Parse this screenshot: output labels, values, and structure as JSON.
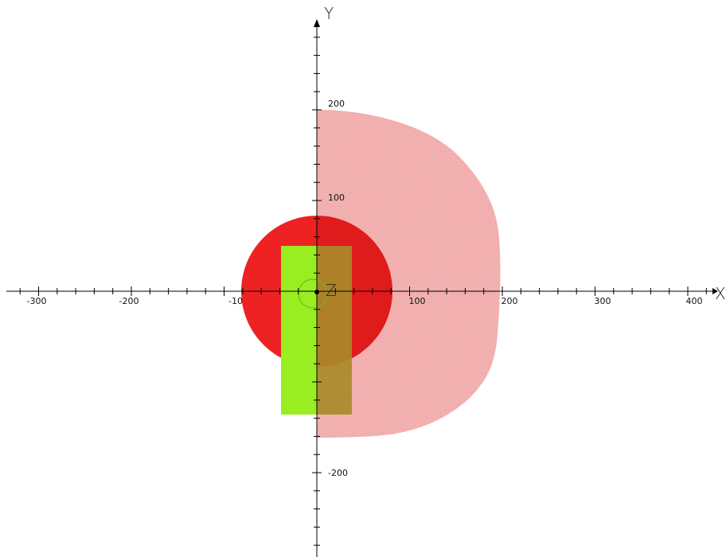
{
  "axes": {
    "x_label": "X",
    "y_label": "Y",
    "z_label": "Z",
    "x_ticks": [
      "-300",
      "-200",
      "-10",
      "100",
      "200",
      "300",
      "400"
    ],
    "y_ticks": [
      "200",
      "100",
      "-200"
    ]
  },
  "colors": {
    "background": "#ffffff",
    "axis": "#000000",
    "translucent_shell": "#f2a0a0",
    "red_disc": "#ee2222",
    "green_rect": "#99ee22",
    "overlap_rect": "#a98a2a"
  }
}
